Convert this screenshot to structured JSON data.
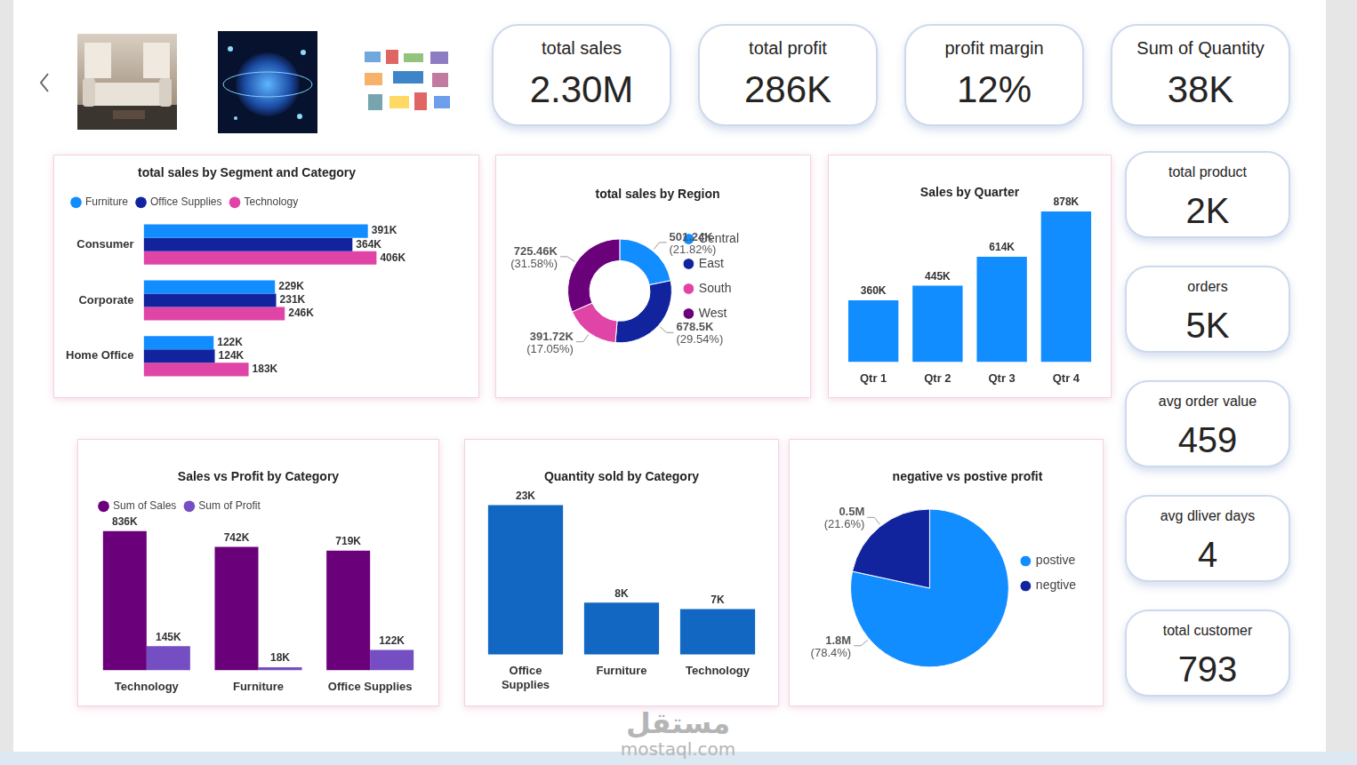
{
  "kpis": [
    {
      "label": "total sales",
      "value": "2.30M"
    },
    {
      "label": "total profit",
      "value": "286K"
    },
    {
      "label": "profit margin",
      "value": "12%"
    },
    {
      "label": "Sum of Quantity",
      "value": "38K"
    }
  ],
  "side_kpis": [
    {
      "label": "total product",
      "value": "2K"
    },
    {
      "label": "orders",
      "value": "5K"
    },
    {
      "label": "avg order value",
      "value": "459"
    },
    {
      "label": "avg dliver days",
      "value": "4"
    },
    {
      "label": "total customer",
      "value": "793"
    }
  ],
  "watermark": {
    "text": "مستقل",
    "url": "mostaql.com"
  },
  "chart_data": [
    {
      "type": "bar",
      "title": "total sales by Segment and Category",
      "orientation": "horizontal",
      "categories": [
        "Consumer",
        "Corporate",
        "Home Office"
      ],
      "series": [
        {
          "name": "Furniture",
          "color": "#118DFF",
          "values": [
            391000,
            229000,
            122000
          ],
          "value_labels": [
            "391K",
            "229K",
            "122K"
          ]
        },
        {
          "name": "Office Supplies",
          "color": "#12239E",
          "values": [
            364000,
            231000,
            124000
          ],
          "value_labels": [
            "364K",
            "231K",
            "124K"
          ]
        },
        {
          "name": "Technology",
          "color": "#E044A7",
          "values": [
            406000,
            246000,
            183000
          ],
          "value_labels": [
            "406K",
            "246K",
            "183K"
          ]
        }
      ],
      "legend": "top-left",
      "grid": false,
      "data_labels": true,
      "tick_labels": "y"
    },
    {
      "type": "doughnut",
      "title": "total sales by Region",
      "categories": [
        "Central",
        "East",
        "South",
        "West"
      ],
      "values": [
        501240,
        678500,
        391720,
        725460
      ],
      "value_labels": [
        "501.24K",
        "678.5K",
        "391.72K",
        "725.46K"
      ],
      "percent_labels": [
        "(21.82%)",
        "(29.54%)",
        "(17.05%)",
        "(31.58%)"
      ],
      "colors": [
        "#118DFF",
        "#12239E",
        "#E044A7",
        "#6B007B"
      ],
      "legend": "right",
      "data_labels": true
    },
    {
      "type": "bar",
      "title": "Sales by Quarter",
      "categories": [
        "Qtr 1",
        "Qtr 2",
        "Qtr 3",
        "Qtr 4"
      ],
      "values": [
        360000,
        445000,
        614000,
        878000
      ],
      "value_labels": [
        "360K",
        "445K",
        "614K",
        "878K"
      ],
      "color": "#118DFF",
      "grid": false,
      "data_labels": true,
      "tick_labels": "x"
    },
    {
      "type": "bar",
      "title": "Sales vs Profit by Category",
      "categories": [
        "Technology",
        "Furniture",
        "Office Supplies"
      ],
      "series": [
        {
          "name": "Sum of Sales",
          "color": "#6B007B",
          "values": [
            836000,
            742000,
            719000
          ],
          "value_labels": [
            "836K",
            "742K",
            "719K"
          ]
        },
        {
          "name": "Sum of Profit",
          "color": "#744EC2",
          "values": [
            145000,
            18000,
            122000
          ],
          "value_labels": [
            "145K",
            "18K",
            "122K"
          ]
        }
      ],
      "legend": "top-left",
      "grid": false,
      "data_labels": true,
      "tick_labels": "x"
    },
    {
      "type": "bar",
      "title": "Quantity sold by Category",
      "categories": [
        "Office Supplies",
        "Furniture",
        "Technology"
      ],
      "values": [
        23000,
        8000,
        7000
      ],
      "value_labels": [
        "23K",
        "8K",
        "7K"
      ],
      "color": "#1167C1",
      "grid": false,
      "data_labels": true,
      "tick_labels": "x"
    },
    {
      "type": "pie",
      "title": "negative vs postive profit",
      "categories": [
        "postive",
        "negtive"
      ],
      "values": [
        1800000,
        496000
      ],
      "value_labels": [
        "1.8M",
        "0.5M"
      ],
      "percent_labels": [
        "(78.4%)",
        "(21.6%)"
      ],
      "colors": [
        "#118DFF",
        "#12239E"
      ],
      "legend": "right",
      "data_labels": true
    }
  ]
}
